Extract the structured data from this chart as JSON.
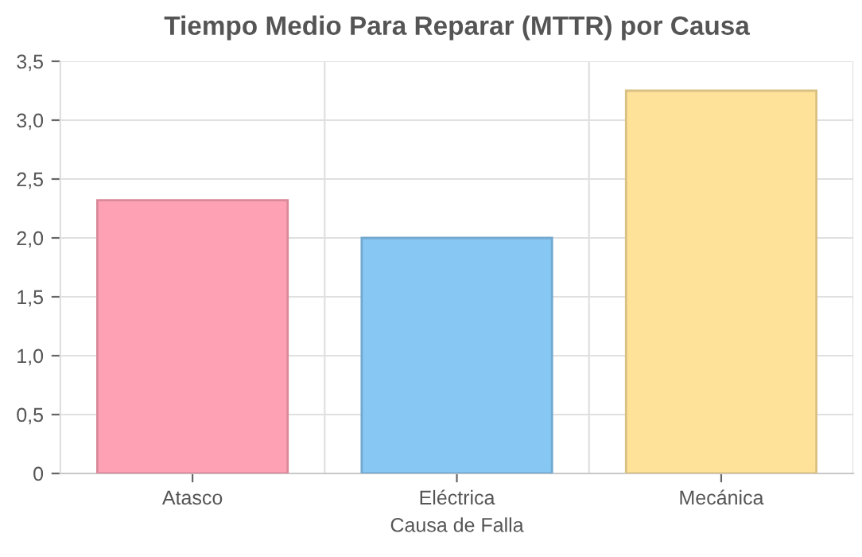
{
  "chart_data": {
    "type": "bar",
    "title": "Tiempo Medio Para Reparar (MTTR) por Causa",
    "xlabel": "Causa de Falla",
    "categories": [
      "Atasco",
      "Eléctrica",
      "Mecánica"
    ],
    "values": [
      2.32,
      2.0,
      3.25
    ],
    "colors": [
      "#ffa1b5",
      "#86c7f3",
      "#ffe29a"
    ],
    "ylim": [
      0,
      3.5
    ],
    "yticks": [
      0,
      {
        "value": 0.5,
        "label": "0,5"
      },
      {
        "value": 1.0,
        "label": "1,0"
      },
      {
        "value": 1.5,
        "label": "1,5"
      },
      {
        "value": 2.0,
        "label": "2,0"
      },
      {
        "value": 2.5,
        "label": "2,5"
      },
      {
        "value": 3.0,
        "label": "3,0"
      },
      {
        "value": 3.5,
        "label": "3,5"
      }
    ],
    "grid": true
  }
}
